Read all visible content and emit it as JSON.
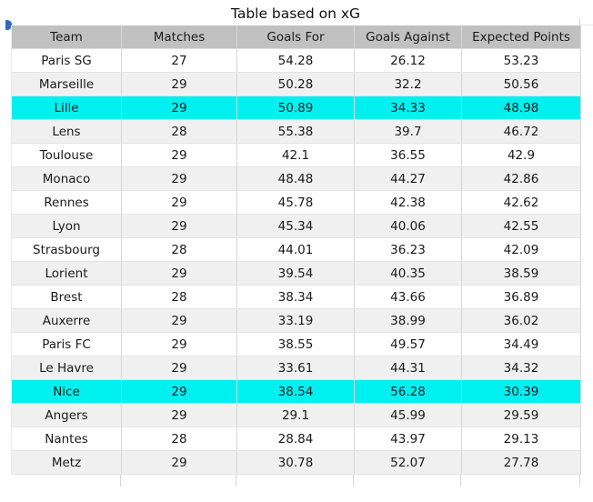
{
  "title": "Table based on xG",
  "icons": {
    "note_marker": "blue-corner-note-marker"
  },
  "colors": {
    "header_bg": "#c1c1c1",
    "alt_row_bg": "#f0f0f0",
    "highlight_bg": "#00f0f0",
    "border_v": "#d6d6d6",
    "border_h": "#e4e4e4",
    "text": "#1a1a1a",
    "marker": "#2e6ac4"
  },
  "chart_data": {
    "type": "table",
    "title": "Table based on xG",
    "columns": [
      "Team",
      "Matches",
      "Goals For",
      "Goals Against",
      "Expected Points"
    ],
    "rows": [
      [
        "Paris SG",
        27,
        54.28,
        26.12,
        53.23
      ],
      [
        "Marseille",
        29,
        50.28,
        32.2,
        50.56
      ],
      [
        "Lille",
        29,
        50.89,
        34.33,
        48.98
      ],
      [
        "Lens",
        28,
        55.38,
        39.7,
        46.72
      ],
      [
        "Toulouse",
        29,
        42.1,
        36.55,
        42.9
      ],
      [
        "Monaco",
        29,
        48.48,
        44.27,
        42.86
      ],
      [
        "Rennes",
        29,
        45.78,
        42.38,
        42.62
      ],
      [
        "Lyon",
        29,
        45.34,
        40.06,
        42.55
      ],
      [
        "Strasbourg",
        28,
        44.01,
        36.23,
        42.09
      ],
      [
        "Lorient",
        29,
        39.54,
        40.35,
        38.59
      ],
      [
        "Brest",
        28,
        38.34,
        43.66,
        36.89
      ],
      [
        "Auxerre",
        29,
        33.19,
        38.99,
        36.02
      ],
      [
        "Paris FC",
        29,
        38.55,
        49.57,
        34.49
      ],
      [
        "Le Havre",
        29,
        33.61,
        44.31,
        34.32
      ],
      [
        "Nice",
        29,
        38.54,
        56.28,
        30.39
      ],
      [
        "Angers",
        29,
        29.1,
        45.99,
        29.59
      ],
      [
        "Nantes",
        28,
        28.84,
        43.97,
        29.13
      ],
      [
        "Metz",
        29,
        30.78,
        52.07,
        27.78
      ]
    ],
    "highlighted_rows": [
      "Lille",
      "Nice"
    ],
    "highlight_color": "#00f0f0",
    "layout_hints": {
      "header_background": "#c1c1c1",
      "zebra_striping": true,
      "grid": "light vertical and horizontal cell borders"
    }
  }
}
